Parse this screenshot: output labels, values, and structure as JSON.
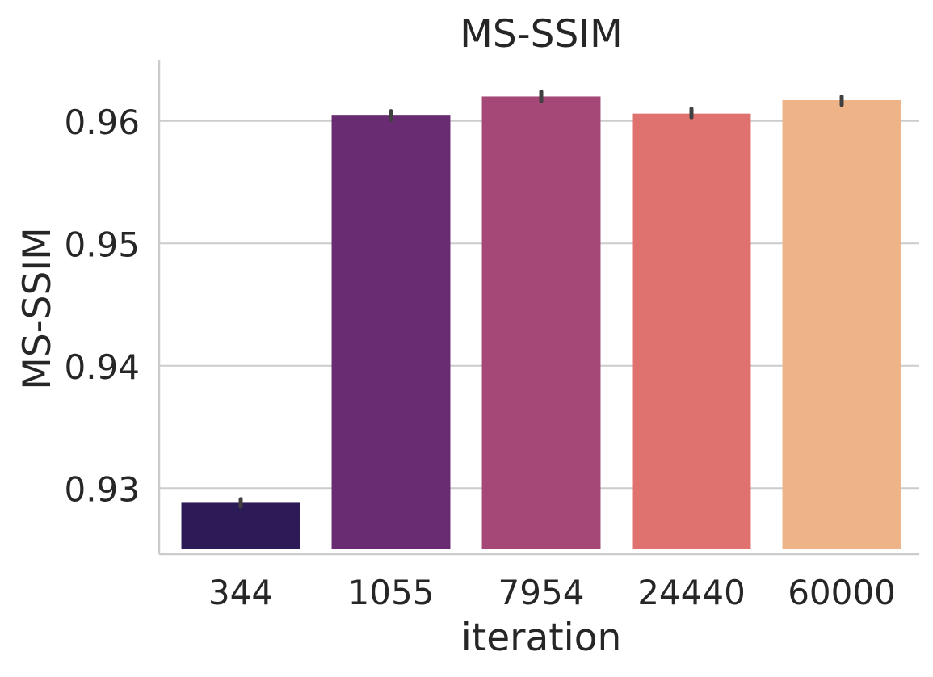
{
  "chart_data": {
    "type": "bar",
    "title": "MS-SSIM",
    "xlabel": "iteration",
    "ylabel": "MS-SSIM",
    "categories": [
      "344",
      "1055",
      "7954",
      "24440",
      "60000"
    ],
    "values": [
      0.9288,
      0.9605,
      0.962,
      0.9606,
      0.9617
    ],
    "error_bars": [
      [
        0.9285,
        0.9291
      ],
      [
        0.9601,
        0.9608
      ],
      [
        0.9616,
        0.9624
      ],
      [
        0.9603,
        0.961
      ],
      [
        0.9613,
        0.962
      ]
    ],
    "colors": [
      "#2d1b57",
      "#692b72",
      "#a54878",
      "#df716e",
      "#eeb387"
    ],
    "error_bar_color": "#404040",
    "ylim": [
      0.925,
      0.965
    ],
    "yticks": [
      0.93,
      0.94,
      0.95,
      0.96
    ],
    "ytick_labels": [
      "0.93",
      "0.94",
      "0.95",
      "0.96"
    ],
    "grid": "horizontal",
    "grid_color": "#cccccc",
    "spine_color": "#cccccc"
  }
}
